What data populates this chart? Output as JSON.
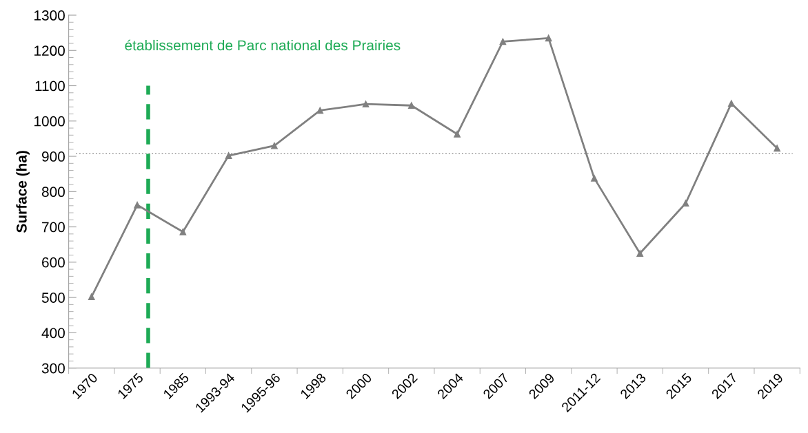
{
  "chart_data": {
    "type": "line",
    "ylabel": "Surface (ha)",
    "categories": [
      "1970",
      "1975",
      "1985",
      "1993-94",
      "1995-96",
      "1998",
      "2000",
      "2002",
      "2004",
      "2007",
      "2009",
      "2011-12",
      "2013",
      "2015",
      "2017",
      "2019"
    ],
    "series": [
      {
        "color": "#808080",
        "values": [
          502,
          762,
          686,
          902,
          930,
          1030,
          1048,
          1044,
          963,
          1225,
          1235,
          838,
          625,
          767,
          1050,
          923
        ]
      }
    ],
    "ylim": [
      300,
      1300
    ],
    "yticks": [
      300,
      400,
      500,
      600,
      700,
      800,
      900,
      1000,
      1100,
      1200,
      1300
    ],
    "ref_lines": [
      {
        "axis": "y",
        "value": 908,
        "color": "#a6a6a6",
        "line_style": "dotted"
      },
      {
        "axis": "x",
        "value": "1975",
        "label": "établissement de Parc national des Prairies",
        "color": "#1daa55",
        "line_style": "dashed"
      }
    ],
    "marker": "triangle",
    "line_style": "solid"
  }
}
